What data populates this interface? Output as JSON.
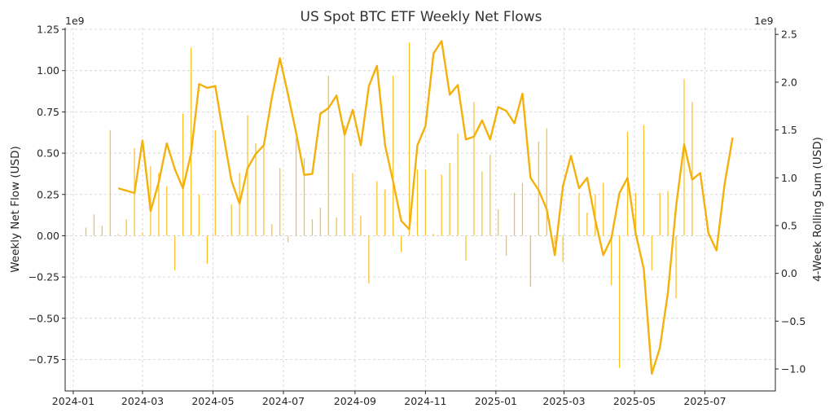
{
  "chart_data": {
    "type": "bar+line",
    "title": "US Spot BTC ETF Weekly Net Flows",
    "xlabel": "",
    "ylabel_left": "Weekly Net Flow (USD)",
    "ylabel_right": "4-Week Rolling Sum (USD)",
    "offset_left": "1e9",
    "offset_right": "1e9",
    "ylim_left": [
      -0.94,
      1.26
    ],
    "ylim_right": [
      -1.23,
      2.57
    ],
    "yticks_left": [
      -0.75,
      -0.5,
      -0.25,
      0.0,
      0.25,
      0.5,
      0.75,
      1.0,
      1.25
    ],
    "yticks_right": [
      -1.0,
      -0.5,
      0.0,
      0.5,
      1.0,
      1.5,
      2.0,
      2.5
    ],
    "xlim": [
      "2023-12-25",
      "2025-08-31"
    ],
    "xticks": [
      "2024-01",
      "2024-03",
      "2024-05",
      "2024-07",
      "2024-09",
      "2024-11",
      "2025-01",
      "2025-03",
      "2025-05",
      "2025-07"
    ],
    "grid": true,
    "bar_color": "#fbbf24",
    "line_color": "#f4b10c",
    "series": [
      {
        "name": "",
        "kind": "bar",
        "axis": "left",
        "x": [
          "2024-01-12",
          "2024-01-19",
          "2024-01-26",
          "2024-02-02",
          "2024-02-09",
          "2024-02-16",
          "2024-02-23",
          "2024-03-01",
          "2024-03-08",
          "2024-03-15",
          "2024-03-22",
          "2024-03-29",
          "2024-04-05",
          "2024-04-12",
          "2024-04-19",
          "2024-04-26",
          "2024-05-03",
          "2024-05-10",
          "2024-05-17",
          "2024-05-24",
          "2024-05-31",
          "2024-06-07",
          "2024-06-14",
          "2024-06-21",
          "2024-06-28",
          "2024-07-05",
          "2024-07-12",
          "2024-07-19",
          "2024-07-26",
          "2024-08-02",
          "2024-08-09",
          "2024-08-16",
          "2024-08-23",
          "2024-08-30",
          "2024-09-06",
          "2024-09-13",
          "2024-09-20",
          "2024-09-27",
          "2024-10-04",
          "2024-10-11",
          "2024-10-18",
          "2024-10-25",
          "2024-11-01",
          "2024-11-08",
          "2024-11-15",
          "2024-11-22",
          "2024-11-29",
          "2024-12-06",
          "2024-12-13",
          "2024-12-20",
          "2024-12-27",
          "2025-01-03",
          "2025-01-10",
          "2025-01-17",
          "2025-01-24",
          "2025-01-31",
          "2025-02-07",
          "2025-02-14",
          "2025-02-21",
          "2025-02-28",
          "2025-03-07",
          "2025-03-14",
          "2025-03-21",
          "2025-03-28",
          "2025-04-04",
          "2025-04-11",
          "2025-04-18",
          "2025-04-25",
          "2025-05-02",
          "2025-05-09",
          "2025-05-16",
          "2025-05-23",
          "2025-05-30",
          "2025-06-06",
          "2025-06-13",
          "2025-06-20",
          "2025-06-27",
          "2025-07-04",
          "2025-07-11",
          "2025-07-18"
        ],
        "values": [
          0.05,
          0.13,
          0.06,
          0.64,
          0.01,
          0.1,
          0.53,
          0.02,
          0.42,
          0.38,
          0.3,
          -0.21,
          0.74,
          1.14,
          0.25,
          -0.17,
          0.64,
          0.0,
          0.19,
          0.38,
          0.73,
          0.56,
          0.57,
          0.07,
          0.41,
          -0.04,
          0.59,
          0.47,
          0.1,
          0.17,
          0.97,
          0.11,
          0.67,
          0.38,
          0.12,
          -0.29,
          0.33,
          0.28,
          0.97,
          -0.1,
          1.17,
          0.4,
          0.4,
          0.01,
          0.37,
          0.44,
          0.62,
          -0.15,
          0.81,
          0.39,
          0.49,
          0.16,
          -0.12,
          0.26,
          0.32,
          -0.31,
          0.57,
          0.65,
          -0.05,
          -0.16,
          0.0,
          0.26,
          0.14,
          0.25,
          0.32,
          -0.3,
          -0.8,
          0.63,
          0.26,
          0.67,
          -0.21,
          0.26,
          0.27,
          -0.38,
          0.95,
          0.81,
          0.0,
          0.0,
          0.0,
          0.0
        ]
      },
      {
        "name": "",
        "kind": "line",
        "axis": "right",
        "x": [
          "2024-02-09",
          "2024-02-23",
          "2024-03-01",
          "2024-03-08",
          "2024-03-15",
          "2024-03-22",
          "2024-03-29",
          "2024-04-05",
          "2024-04-12",
          "2024-04-19",
          "2024-04-26",
          "2024-05-03",
          "2024-05-10",
          "2024-05-17",
          "2024-05-24",
          "2024-05-31",
          "2024-06-07",
          "2024-06-14",
          "2024-06-21",
          "2024-06-28",
          "2024-07-05",
          "2024-07-12",
          "2024-07-19",
          "2024-07-26",
          "2024-08-02",
          "2024-08-09",
          "2024-08-16",
          "2024-08-23",
          "2024-08-30",
          "2024-09-06",
          "2024-09-13",
          "2024-09-20",
          "2024-09-27",
          "2024-10-04",
          "2024-10-11",
          "2024-10-18",
          "2024-10-25",
          "2024-11-01",
          "2024-11-08",
          "2024-11-15",
          "2024-11-22",
          "2024-11-29",
          "2024-12-06",
          "2024-12-13",
          "2024-12-20",
          "2024-12-27",
          "2025-01-03",
          "2025-01-10",
          "2025-01-17",
          "2025-01-24",
          "2025-01-31",
          "2025-02-07",
          "2025-02-14",
          "2025-02-21",
          "2025-02-28",
          "2025-03-07",
          "2025-03-14",
          "2025-03-21",
          "2025-03-28",
          "2025-04-04",
          "2025-04-11",
          "2025-04-18",
          "2025-04-25",
          "2025-05-02",
          "2025-05-09",
          "2025-05-16",
          "2025-05-23",
          "2025-05-30",
          "2025-06-06",
          "2025-06-13",
          "2025-06-20",
          "2025-06-27",
          "2025-07-04",
          "2025-07-11",
          "2025-07-18",
          "2025-07-25"
        ],
        "values": [
          0.89,
          0.84,
          1.39,
          0.65,
          0.95,
          1.36,
          1.09,
          0.89,
          1.25,
          1.98,
          1.94,
          1.96,
          1.45,
          0.97,
          0.73,
          1.1,
          1.25,
          1.34,
          1.84,
          2.25,
          1.87,
          1.47,
          1.03,
          1.04,
          1.67,
          1.73,
          1.86,
          1.45,
          1.71,
          1.34,
          1.96,
          2.17,
          1.34,
          0.96,
          0.55,
          0.46,
          1.34,
          1.54,
          2.3,
          2.43,
          1.87,
          1.97,
          1.4,
          1.43,
          1.6,
          1.4,
          1.74,
          1.7,
          1.57,
          1.88,
          1.0,
          0.87,
          0.67,
          0.19,
          0.91,
          1.23,
          0.89,
          1.0,
          0.56,
          0.19,
          0.37,
          0.84,
          1.0,
          0.42,
          0.05,
          -1.05,
          -0.78,
          -0.2,
          0.7,
          1.35,
          0.98,
          1.05,
          0.42,
          0.24,
          0.93,
          1.42
        ]
      }
    ]
  }
}
